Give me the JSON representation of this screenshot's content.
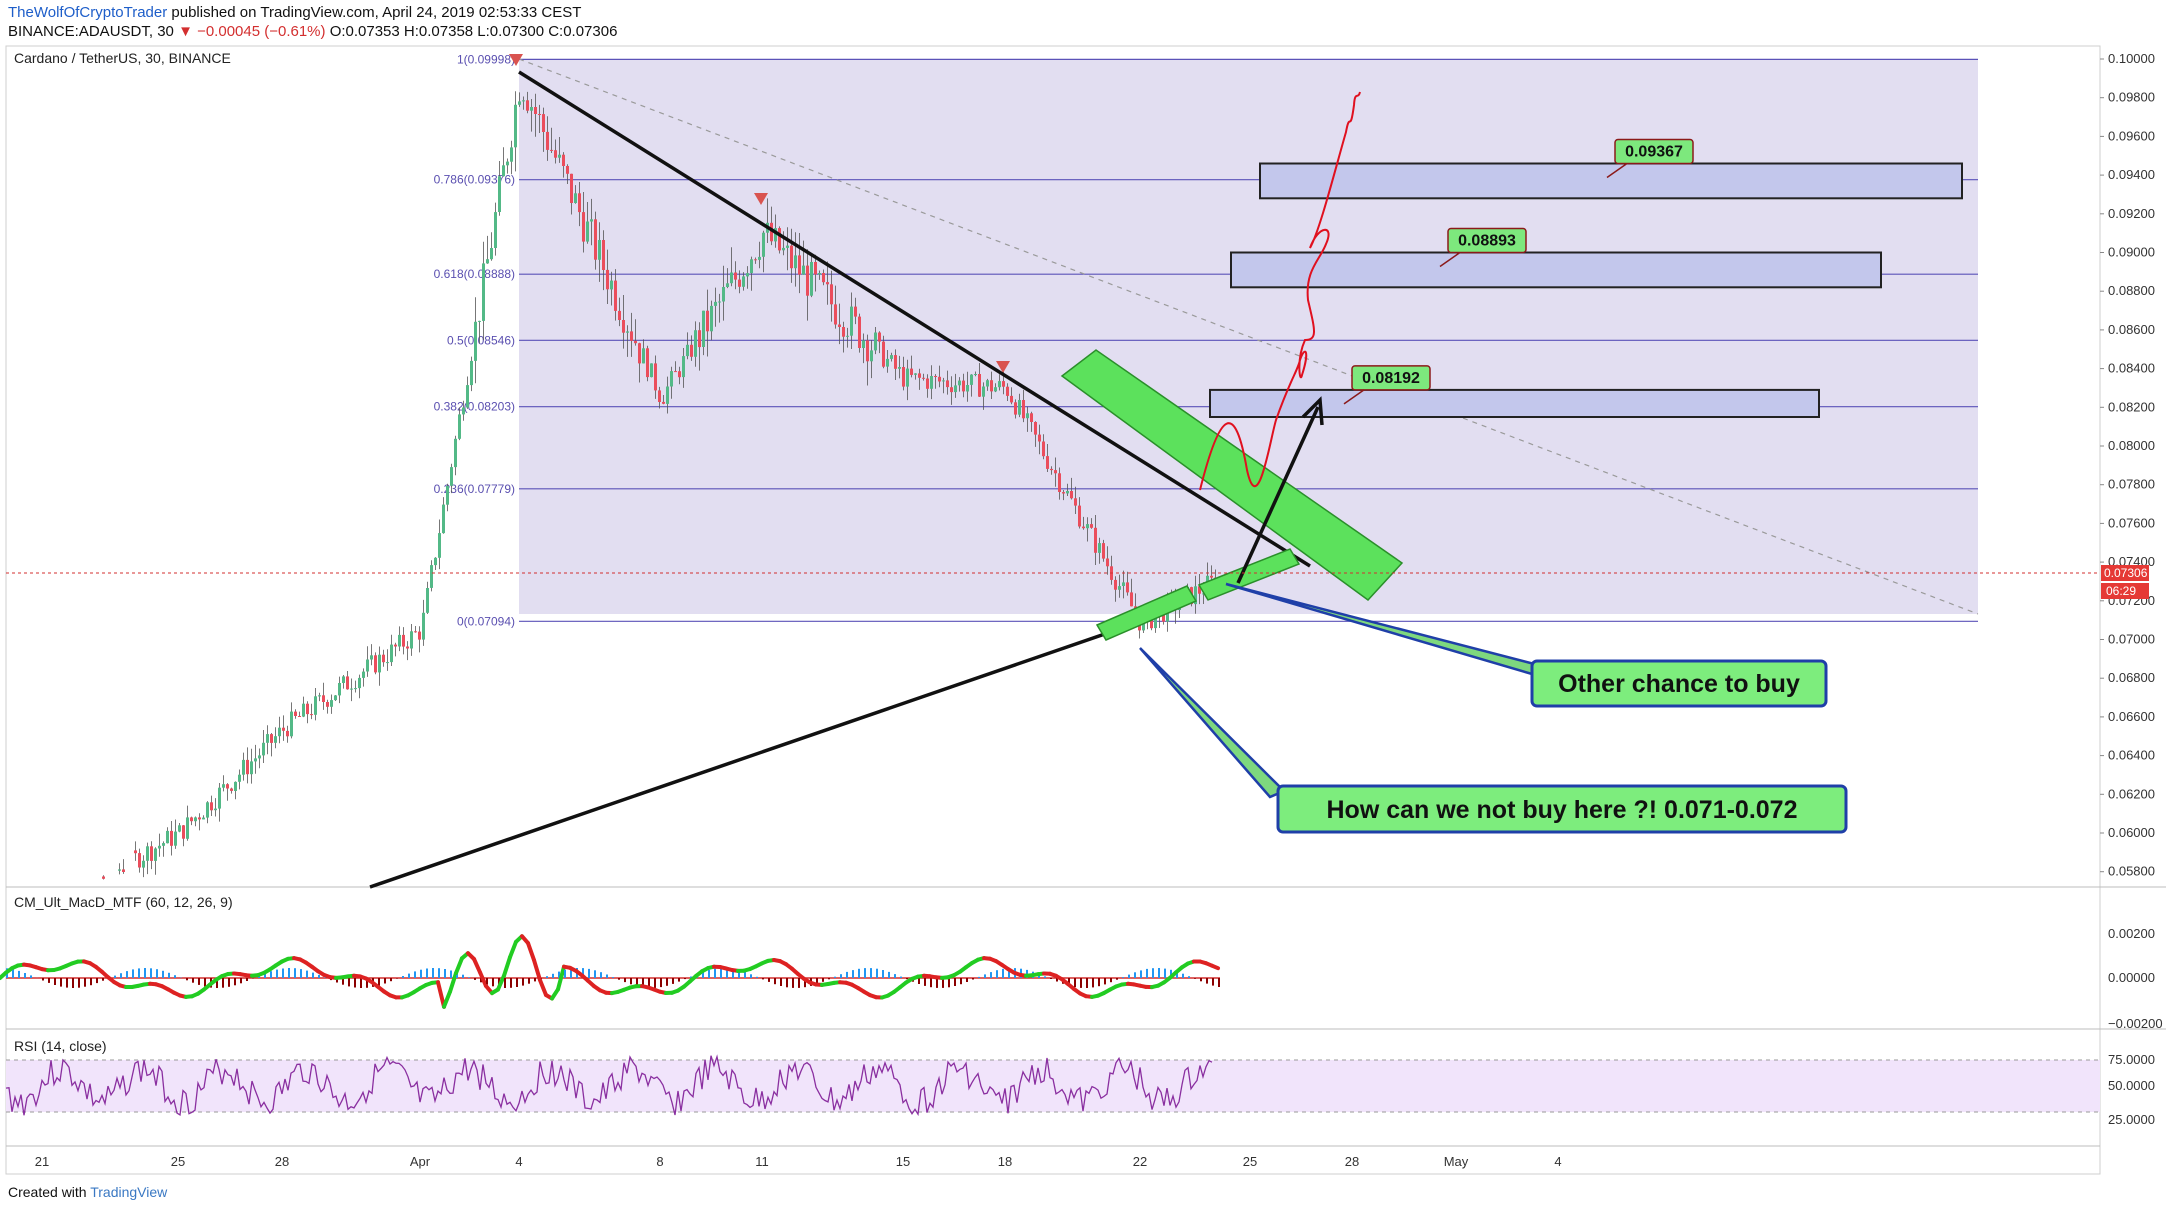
{
  "header": {
    "author": "TheWolfOfCryptoTrader",
    "published": "published on TradingView.com, April 24, 2019 02:53:33 CEST",
    "symbol_line": "BINANCE:ADAUSDT, 30",
    "change": "▼ −0.00045 (−0.61%)",
    "ohlc": "O:0.07353 H:0.07358 L:0.07300 C:0.07306"
  },
  "main_pane": {
    "title": "Cardano / TetherUS, 30, BINANCE"
  },
  "price_axis": {
    "labels": [
      "0.10000",
      "0.09800",
      "0.09600",
      "0.09400",
      "0.09200",
      "0.09000",
      "0.08800",
      "0.08600",
      "0.08400",
      "0.08200",
      "0.08000",
      "0.07800",
      "0.07600",
      "0.07400",
      "0.07200",
      "0.07000",
      "0.06800",
      "0.06600",
      "0.06400",
      "0.06200",
      "0.06000",
      "0.05800"
    ],
    "current_price": "0.07306",
    "countdown": "06:29"
  },
  "fib_levels": [
    {
      "label": "1(0.09998)",
      "price": 0.09998
    },
    {
      "label": "0.786(0.09376)",
      "price": 0.09376
    },
    {
      "label": "0.618(0.08888)",
      "price": 0.08888
    },
    {
      "label": "0.5(0.08546)",
      "price": 0.08546
    },
    {
      "label": "0.382(0.08203)",
      "price": 0.08203
    },
    {
      "label": "0.236(0.07779)",
      "price": 0.07779
    },
    {
      "label": "0(0.07094)",
      "price": 0.07094
    }
  ],
  "targets": [
    {
      "label": "0.09367",
      "low": 0.0928,
      "high": 0.0946
    },
    {
      "label": "0.08893",
      "low": 0.0882,
      "high": 0.09
    },
    {
      "label": "0.08192",
      "low": 0.0815,
      "high": 0.0829
    }
  ],
  "annotations": [
    {
      "text": "Other chance to buy"
    },
    {
      "text": "How can we not buy here ?! 0.071-0.072"
    }
  ],
  "macd_pane": {
    "title": "CM_Ult_MacD_MTF (60, 12, 26, 9)",
    "labels": [
      "0.00200",
      "0.00000",
      "−0.00200"
    ]
  },
  "rsi_pane": {
    "title": "RSI (14, close)",
    "labels": [
      "75.0000",
      "50.0000",
      "25.0000"
    ]
  },
  "time_axis": {
    "labels": [
      "21",
      "25",
      "28",
      "Apr",
      "4",
      "8",
      "11",
      "15",
      "18",
      "22",
      "25",
      "28",
      "May",
      "4"
    ]
  },
  "footer": {
    "created": "Created with",
    "brand": "TradingView"
  },
  "chart_data": {
    "type": "line",
    "title": "Cardano / TetherUS, 30, BINANCE",
    "x": [
      "Mar 21",
      "Mar 25",
      "Mar 28",
      "Apr 1",
      "Apr 4",
      "Apr 8",
      "Apr 11",
      "Apr 15",
      "Apr 18",
      "Apr 22",
      "Apr 24"
    ],
    "series": [
      {
        "name": "Cardano / TetherUS",
        "values": [
          0.0555,
          0.06,
          0.0655,
          0.0705,
          0.099,
          0.0825,
          0.091,
          0.0835,
          0.083,
          0.0708,
          0.07306
        ]
      }
    ],
    "ylim": [
      0.057,
      0.1005
    ],
    "colors": {
      "fib_zone": "#dcd6ee",
      "fib_line": "#5b52b8",
      "target_box": "#c3c7ec",
      "green": "#5ce15c",
      "label": "#7de87d",
      "candle_up": "#53b987",
      "candle_down": "#eb4d5c",
      "rsi": "#8a2fa0",
      "projection": "#e0101f"
    }
  }
}
